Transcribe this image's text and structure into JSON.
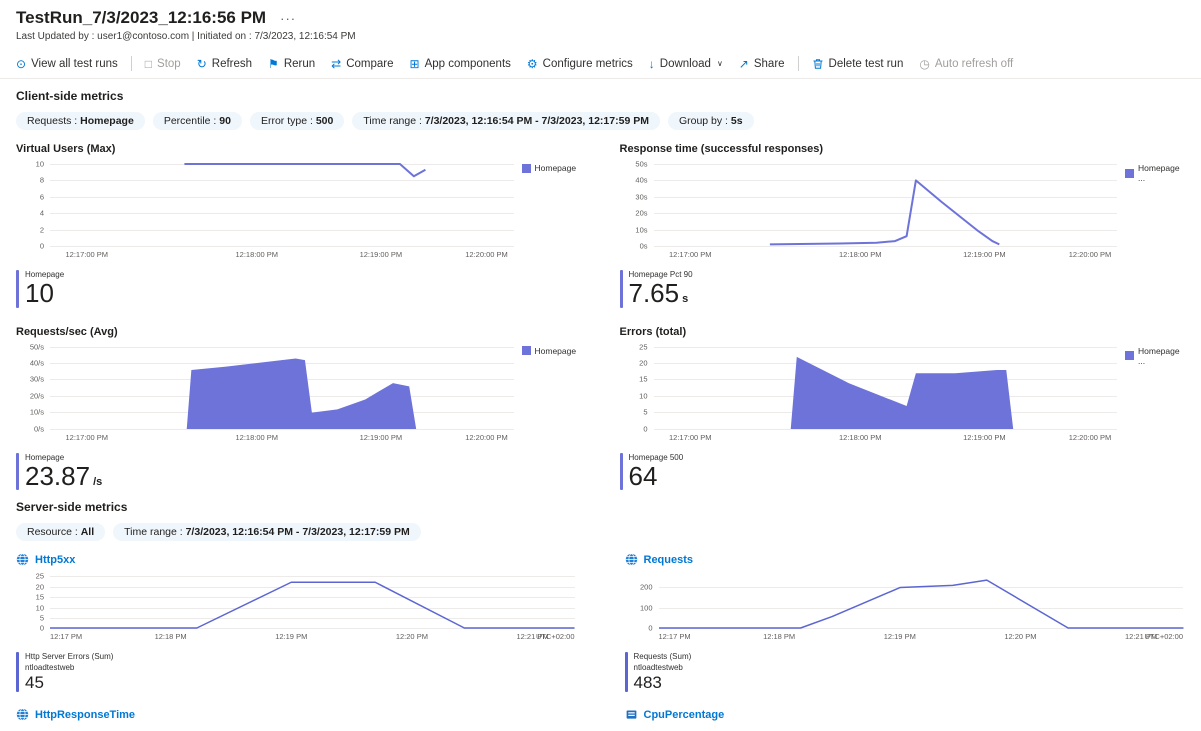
{
  "header": {
    "title": "TestRun_7/3/2023_12:16:56 PM",
    "more": "···",
    "subtitle": "Last Updated by : user1@contoso.com | Initiated on : 7/3/2023, 12:16:54 PM"
  },
  "toolbar": {
    "items": [
      {
        "label": "View all test runs",
        "icon": "view-all-test-runs-icon",
        "glyph": "⊙",
        "disabled": false
      },
      {
        "divider": true
      },
      {
        "label": "Stop",
        "icon": "stop-icon",
        "glyph": "□",
        "disabled": true
      },
      {
        "label": "Refresh",
        "icon": "refresh-icon",
        "glyph": "↻",
        "disabled": false
      },
      {
        "label": "Rerun",
        "icon": "rerun-icon",
        "glyph": "⚑",
        "disabled": false
      },
      {
        "label": "Compare",
        "icon": "compare-icon",
        "glyph": "⇄",
        "disabled": false
      },
      {
        "label": "App components",
        "icon": "app-components-icon",
        "glyph": "⊞",
        "disabled": false
      },
      {
        "label": "Configure metrics",
        "icon": "configure-metrics-icon",
        "glyph": "⚙",
        "disabled": false
      },
      {
        "label": "Download",
        "icon": "download-icon",
        "glyph": "↓",
        "chevron": "∨",
        "disabled": false
      },
      {
        "label": "Share",
        "icon": "share-icon",
        "glyph": "↗",
        "disabled": false
      },
      {
        "divider": true
      },
      {
        "label": "Delete test run",
        "icon": "delete-icon",
        "svg": "trash",
        "disabled": false
      },
      {
        "label": "Auto refresh off",
        "icon": "auto-refresh-off-icon",
        "glyph": "◷",
        "disabled": true
      }
    ]
  },
  "client_section": {
    "heading": "Client-side metrics",
    "filters": [
      {
        "label": "Requests :",
        "value": "Homepage"
      },
      {
        "label": "Percentile :",
        "value": "90"
      },
      {
        "label": "Error type :",
        "value": "500"
      },
      {
        "label": "Time range :",
        "value": "7/3/2023, 12:16:54 PM - 7/3/2023, 12:17:59 PM"
      },
      {
        "label": "Group by :",
        "value": "5s"
      }
    ]
  },
  "server_section": {
    "heading": "Server-side metrics",
    "filters": [
      {
        "label": "Resource :",
        "value": "All"
      },
      {
        "label": "Time range :",
        "value": "7/3/2023, 12:16:54 PM - 7/3/2023, 12:17:59 PM"
      }
    ],
    "more_links": [
      {
        "label": "HttpResponseTime",
        "icon": "globe-icon"
      },
      {
        "label": "CpuPercentage",
        "icon": "server-icon"
      }
    ]
  },
  "colors": {
    "accent": "#0078d4",
    "client_series": "#6d73d9",
    "server_series": "#5c66d2"
  },
  "charts": {
    "virtual_users": {
      "type": "line",
      "color": "#6d73d9",
      "stroke": 2,
      "title": "Virtual Users (Max)",
      "legend": "Homepage",
      "y_max": 10,
      "y_ticks": [
        10,
        8,
        6,
        4,
        2,
        0
      ],
      "y_suffix": "",
      "x_labels": [
        {
          "t": "12:17:00 PM",
          "x": 0.08
        },
        {
          "t": "12:18:00 PM",
          "x": 0.45
        },
        {
          "t": "12:19:00 PM",
          "x": 0.72
        },
        {
          "t": "12:20:00 PM",
          "x": 0.95
        }
      ],
      "points": [
        [
          0.29,
          10
        ],
        [
          0.62,
          10
        ],
        [
          0.755,
          10
        ],
        [
          0.785,
          8.5
        ],
        [
          0.81,
          9.3
        ]
      ],
      "stat": {
        "label": "Homepage",
        "value": "10",
        "unit": ""
      }
    },
    "response_time": {
      "type": "line",
      "color": "#6d73d9",
      "stroke": 2,
      "title": "Response time (successful responses)",
      "legend": "Homepage ...",
      "y_max": 50,
      "y_ticks": [
        50,
        40,
        30,
        20,
        10,
        0
      ],
      "y_suffix": "s",
      "x_labels": [
        {
          "t": "12:17:00 PM",
          "x": 0.08
        },
        {
          "t": "12:18:00 PM",
          "x": 0.45
        },
        {
          "t": "12:19:00 PM",
          "x": 0.72
        },
        {
          "t": "12:20:00 PM",
          "x": 0.95
        }
      ],
      "points": [
        [
          0.25,
          1
        ],
        [
          0.4,
          1.5
        ],
        [
          0.48,
          2
        ],
        [
          0.52,
          3
        ],
        [
          0.545,
          6
        ],
        [
          0.565,
          40
        ],
        [
          0.62,
          27
        ],
        [
          0.7,
          9
        ],
        [
          0.73,
          3
        ],
        [
          0.745,
          1
        ]
      ],
      "stat": {
        "label": "Homepage Pct 90",
        "value": "7.65",
        "unit": "s"
      }
    },
    "requests_sec": {
      "type": "area",
      "color": "#6d73d9",
      "stroke": 2,
      "title": "Requests/sec (Avg)",
      "legend": "Homepage",
      "y_max": 50,
      "y_ticks": [
        50,
        40,
        30,
        20,
        10,
        0
      ],
      "y_suffix": "/s",
      "x_labels": [
        {
          "t": "12:17:00 PM",
          "x": 0.08
        },
        {
          "t": "12:18:00 PM",
          "x": 0.45
        },
        {
          "t": "12:19:00 PM",
          "x": 0.72
        },
        {
          "t": "12:20:00 PM",
          "x": 0.95
        }
      ],
      "points": [
        [
          0.295,
          0
        ],
        [
          0.305,
          36
        ],
        [
          0.38,
          38
        ],
        [
          0.47,
          41
        ],
        [
          0.53,
          43
        ],
        [
          0.55,
          42
        ],
        [
          0.565,
          10
        ],
        [
          0.62,
          12
        ],
        [
          0.68,
          18
        ],
        [
          0.74,
          28
        ],
        [
          0.775,
          26
        ],
        [
          0.79,
          0
        ]
      ],
      "stat": {
        "label": "Homepage",
        "value": "23.87",
        "unit": "/s"
      }
    },
    "errors": {
      "type": "area",
      "color": "#6d73d9",
      "stroke": 2,
      "title": "Errors (total)",
      "legend": "Homepage ...",
      "y_max": 25,
      "y_ticks": [
        25,
        20,
        15,
        10,
        5,
        0
      ],
      "y_suffix": "",
      "x_labels": [
        {
          "t": "12:17:00 PM",
          "x": 0.08
        },
        {
          "t": "12:18:00 PM",
          "x": 0.45
        },
        {
          "t": "12:19:00 PM",
          "x": 0.72
        },
        {
          "t": "12:20:00 PM",
          "x": 0.95
        }
      ],
      "points": [
        [
          0.295,
          0
        ],
        [
          0.308,
          22
        ],
        [
          0.42,
          14
        ],
        [
          0.545,
          7
        ],
        [
          0.565,
          17
        ],
        [
          0.65,
          17
        ],
        [
          0.74,
          18
        ],
        [
          0.76,
          18
        ],
        [
          0.775,
          0
        ]
      ],
      "stat": {
        "label": "Homepage 500",
        "value": "64",
        "unit": ""
      }
    },
    "http5xx": {
      "type": "line",
      "color": "#5c66d2",
      "stroke": 1.5,
      "title": "Http5xx",
      "y_max": 25,
      "y_ticks": [
        25,
        20,
        15,
        10,
        5,
        0
      ],
      "y_suffix": "",
      "x_labels": [
        {
          "t": "12:17 PM",
          "x": 0.0,
          "align": "left"
        },
        {
          "t": "12:18 PM",
          "x": 0.23
        },
        {
          "t": "12:19 PM",
          "x": 0.46
        },
        {
          "t": "12:20 PM",
          "x": 0.69
        },
        {
          "t": "12:21 PM",
          "x": 0.92
        },
        {
          "t": "UTC+02:00",
          "x": 1.0,
          "align": "right"
        }
      ],
      "points": [
        [
          0,
          0
        ],
        [
          0.28,
          0
        ],
        [
          0.46,
          22
        ],
        [
          0.62,
          22
        ],
        [
          0.79,
          0
        ],
        [
          1,
          0
        ]
      ],
      "stat": {
        "label": "Http Server Errors (Sum)",
        "sublabel": "ntloadtestweb",
        "value": "45",
        "unit": ""
      }
    },
    "requests_total": {
      "type": "line",
      "color": "#5c66d2",
      "stroke": 1.5,
      "title": "Requests",
      "y_max": 250,
      "y_ticks": [
        200,
        100,
        0
      ],
      "y_suffix": "",
      "x_labels": [
        {
          "t": "12:17 PM",
          "x": 0.0,
          "align": "left"
        },
        {
          "t": "12:18 PM",
          "x": 0.23
        },
        {
          "t": "12:19 PM",
          "x": 0.46
        },
        {
          "t": "12:20 PM",
          "x": 0.69
        },
        {
          "t": "12:21 PM",
          "x": 0.92
        },
        {
          "t": "UTC+02:00",
          "x": 1.0,
          "align": "right"
        }
      ],
      "points": [
        [
          0,
          0
        ],
        [
          0.27,
          0
        ],
        [
          0.33,
          55
        ],
        [
          0.46,
          195
        ],
        [
          0.56,
          205
        ],
        [
          0.625,
          230
        ],
        [
          0.78,
          0
        ],
        [
          1,
          0
        ]
      ],
      "stat": {
        "label": "Requests (Sum)",
        "sublabel": "ntloadtestweb",
        "value": "483",
        "unit": ""
      }
    }
  }
}
